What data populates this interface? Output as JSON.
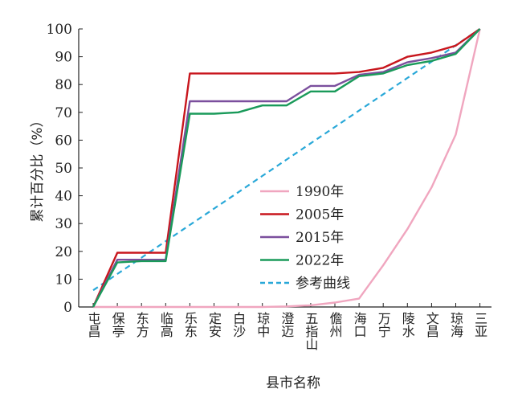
{
  "chart_data": {
    "type": "line",
    "title": "",
    "xlabel": "县市名称",
    "ylabel": "累计百分比（%）",
    "ylim": [
      0,
      100
    ],
    "yticks": [
      0,
      10,
      20,
      30,
      40,
      50,
      60,
      70,
      80,
      90,
      100
    ],
    "categories": [
      "屯昌",
      "保亭",
      "东方",
      "临高",
      "乐东",
      "定安",
      "白沙",
      "琼中",
      "澄迈",
      "五指山",
      "儋州",
      "海口",
      "万宁",
      "陵水",
      "文昌",
      "琼海",
      "三亚"
    ],
    "legend_position": "center",
    "grid": false,
    "series": [
      {
        "name": "1990年",
        "color": "#f0a6bf",
        "values": [
          0,
          0,
          0,
          0,
          0,
          0,
          0,
          0,
          0.2,
          0.6,
          1.6,
          3.0,
          15,
          28,
          43,
          62,
          100
        ]
      },
      {
        "name": "2005年",
        "color": "#c8161d",
        "values": [
          0,
          19.5,
          19.5,
          19.5,
          84,
          84,
          84,
          84,
          84,
          84,
          84,
          84.5,
          86,
          90,
          91.5,
          94,
          100
        ]
      },
      {
        "name": "2015年",
        "color": "#7b4f9d",
        "values": [
          0,
          17,
          17,
          17,
          74,
          74,
          74,
          74,
          74,
          79.5,
          79.5,
          83.5,
          84.5,
          88,
          89.5,
          91.5,
          100
        ]
      },
      {
        "name": "2022年",
        "color": "#1a9a5a",
        "values": [
          0,
          16,
          16.5,
          16.5,
          69.5,
          69.5,
          70,
          72.5,
          72.5,
          77.5,
          77.5,
          83,
          84,
          87,
          88.5,
          91,
          100
        ]
      },
      {
        "name": "参考曲线",
        "color": "#29a8d8",
        "dashed": true,
        "values": [
          6,
          11.88,
          17.75,
          23.63,
          29.5,
          35.38,
          41.25,
          47.13,
          53,
          58.88,
          64.75,
          70.63,
          76.5,
          82.38,
          88.25,
          94.13,
          100
        ]
      }
    ]
  }
}
